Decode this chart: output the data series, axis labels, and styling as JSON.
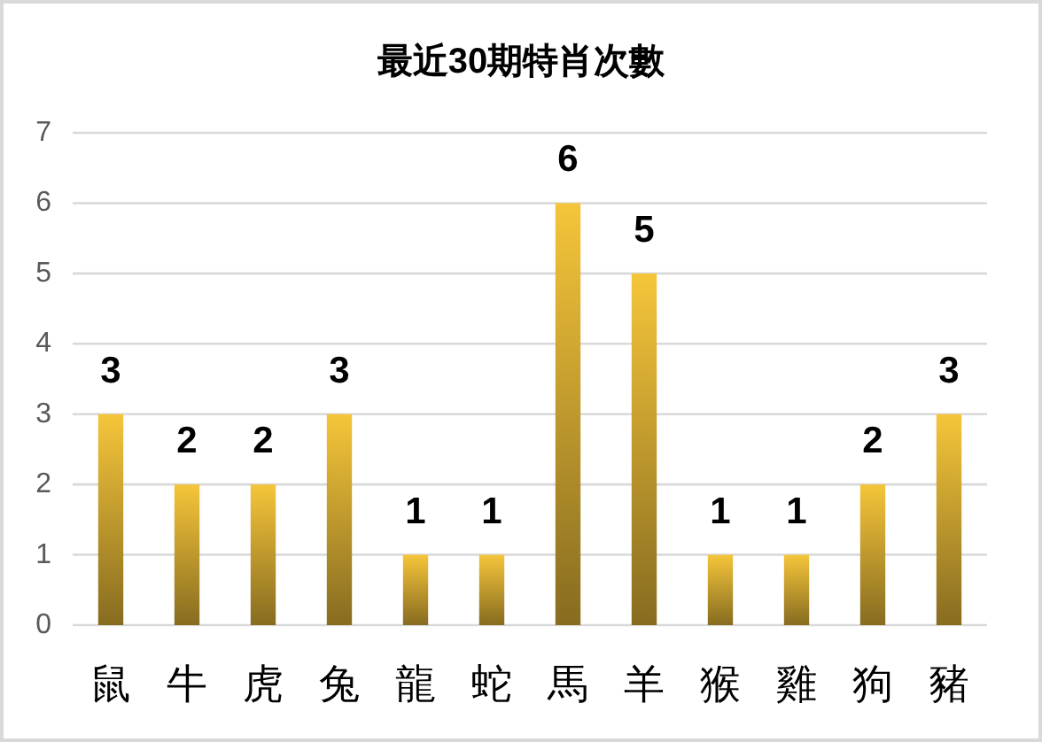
{
  "chart_data": {
    "type": "bar",
    "title": "最近30期特肖次數",
    "categories": [
      "鼠",
      "牛",
      "虎",
      "兔",
      "龍",
      "蛇",
      "馬",
      "羊",
      "猴",
      "雞",
      "狗",
      "豬"
    ],
    "values": [
      3,
      2,
      2,
      3,
      1,
      1,
      6,
      5,
      1,
      1,
      2,
      3
    ],
    "color": "#f5c53a",
    "ylim": [
      0,
      7
    ],
    "yticks": [
      0,
      1,
      2,
      3,
      4,
      5,
      6,
      7
    ],
    "grid": "y",
    "data_labels": true
  }
}
